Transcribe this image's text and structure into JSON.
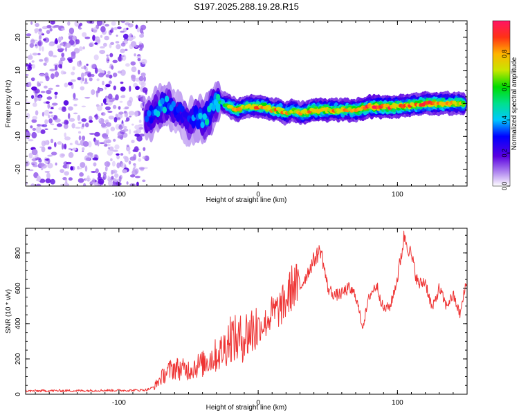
{
  "title": "S197.2025.288.19.28.R15",
  "chart_data": [
    {
      "type": "heatmap",
      "xlabel": "Height of straight line (km)",
      "ylabel": "Frequency (Hz)",
      "xlim": [
        -167,
        150
      ],
      "ylim": [
        -25,
        25
      ],
      "xticks": [
        -100,
        0,
        100
      ],
      "yticks": [
        -20,
        -10,
        0,
        10,
        20
      ],
      "noise_region": {
        "x_from": -167,
        "x_to": -80,
        "y_from": -25,
        "y_to": 25,
        "level": "low"
      },
      "ridge": {
        "x": [
          -80,
          -75,
          -70,
          -65,
          -60,
          -55,
          -50,
          -45,
          -40,
          -35,
          -30,
          -25,
          -20,
          -15,
          -10,
          -5,
          0,
          5,
          10,
          15,
          20,
          25,
          30,
          40,
          50,
          60,
          70,
          80,
          90,
          100,
          110,
          120,
          130,
          140,
          148
        ],
        "freq": [
          -5,
          -3,
          -1,
          0,
          -2,
          -3,
          -6,
          -4,
          -5,
          -3,
          1,
          0,
          -1,
          -2,
          -1,
          -1,
          -1,
          -1,
          -2,
          -2,
          -3,
          -2,
          -3,
          -2,
          -2,
          -2,
          -2,
          -1,
          -1,
          -1,
          -0.5,
          0,
          0,
          0,
          0
        ],
        "amplitude": [
          0.3,
          0.35,
          0.4,
          0.4,
          0.3,
          0.3,
          0.3,
          0.35,
          0.4,
          0.45,
          0.45,
          0.5,
          0.7,
          0.75,
          0.7,
          0.75,
          0.8,
          0.8,
          0.75,
          0.8,
          0.75,
          0.7,
          0.75,
          0.85,
          0.8,
          0.75,
          0.8,
          0.85,
          0.9,
          0.85,
          0.8,
          0.85,
          0.8,
          0.75,
          0.7
        ]
      },
      "colorbar": {
        "label": "Normalized spectral amplitude",
        "range": [
          0,
          1
        ],
        "ticks": [
          "0.0",
          "0.2",
          "0.4",
          "0.6",
          "0.8"
        ],
        "tick_values": [
          0,
          0.2,
          0.4,
          0.6,
          0.8
        ]
      }
    },
    {
      "type": "line",
      "xlabel": "Height of straight line (km)",
      "ylabel": "SNR (10 * v/v)",
      "xlim": [
        -167,
        150
      ],
      "ylim": [
        0,
        940
      ],
      "xticks": [
        -100,
        0,
        100
      ],
      "yticks": [
        0,
        200,
        400,
        600,
        800
      ],
      "series": [
        {
          "name": "SNR",
          "color": "#ee3333",
          "x": [
            -167,
            -150,
            -130,
            -110,
            -90,
            -80,
            -75,
            -70,
            -65,
            -60,
            -55,
            -50,
            -45,
            -40,
            -35,
            -30,
            -25,
            -20,
            -15,
            -10,
            -5,
            0,
            5,
            10,
            15,
            20,
            25,
            30,
            35,
            40,
            45,
            50,
            55,
            60,
            65,
            70,
            75,
            80,
            85,
            90,
            95,
            100,
            105,
            110,
            115,
            120,
            125,
            130,
            135,
            140,
            145,
            150
          ],
          "values": [
            18,
            20,
            20,
            22,
            22,
            25,
            40,
            90,
            130,
            150,
            140,
            140,
            160,
            170,
            200,
            220,
            250,
            330,
            300,
            330,
            360,
            380,
            400,
            460,
            480,
            530,
            620,
            600,
            680,
            760,
            820,
            600,
            560,
            570,
            600,
            560,
            380,
            560,
            620,
            480,
            500,
            660,
            900,
            780,
            620,
            640,
            480,
            600,
            500,
            560,
            450,
            660
          ]
        }
      ]
    }
  ]
}
